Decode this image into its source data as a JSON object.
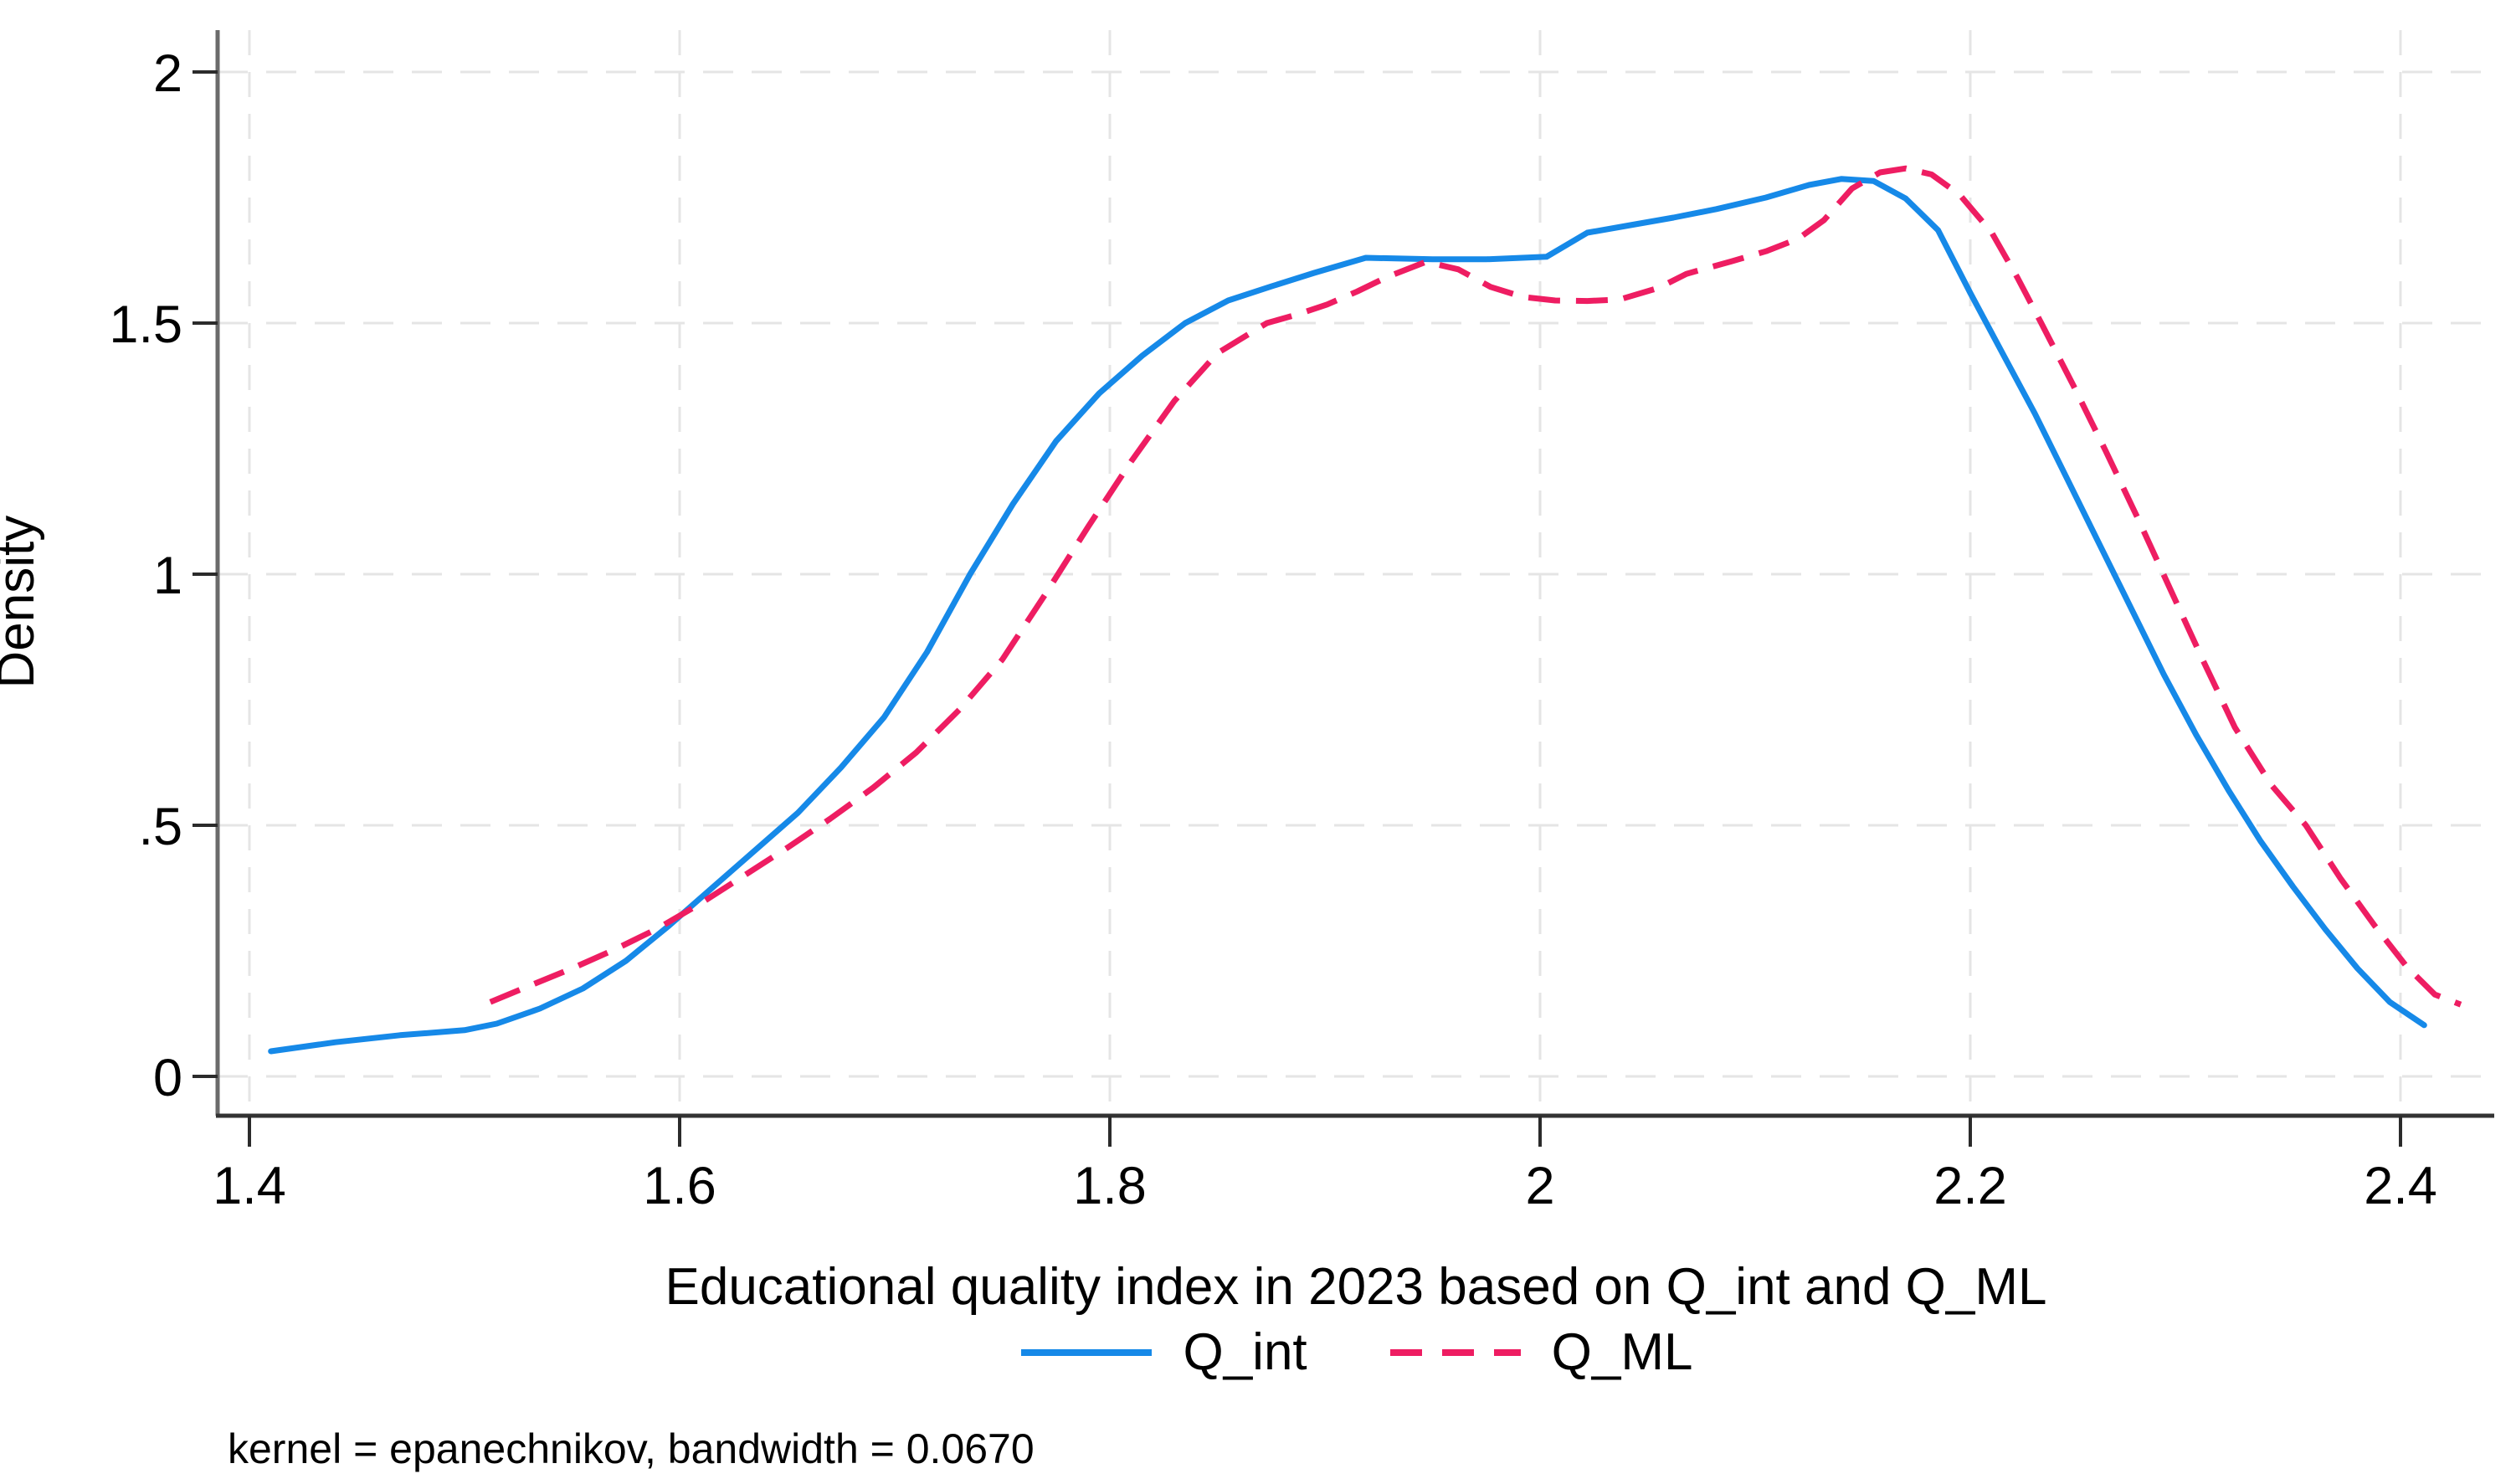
{
  "chart_data": {
    "type": "line",
    "subtype": "kernel-density",
    "title": "",
    "xlabel": "Educational quality index in 2023 based on Q_int and Q_ML",
    "ylabel": "Density",
    "note": "kernel = epanechnikov, bandwidth = 0.0670",
    "xlim": [
      1.385,
      2.444
    ],
    "ylim": [
      -0.078,
      2.083
    ],
    "grid": true,
    "grid_style": "dashed",
    "legend_position": "bottom-center",
    "x_ticks": [
      {
        "value": 1.4,
        "label": "1.4"
      },
      {
        "value": 1.6,
        "label": "1.6"
      },
      {
        "value": 1.8,
        "label": "1.8"
      },
      {
        "value": 2.0,
        "label": "2"
      },
      {
        "value": 2.2,
        "label": "2.2"
      },
      {
        "value": 2.4,
        "label": "2.4"
      }
    ],
    "y_ticks": [
      {
        "value": 0,
        "label": "0"
      },
      {
        "value": 0.5,
        "label": ".5"
      },
      {
        "value": 1,
        "label": "1"
      },
      {
        "value": 1.5,
        "label": "1.5"
      },
      {
        "value": 2,
        "label": "2"
      }
    ],
    "series": [
      {
        "name": "Q_int",
        "style": "solid",
        "color": "#1689e8",
        "points": [
          [
            1.41,
            0.05
          ],
          [
            1.44,
            0.068
          ],
          [
            1.47,
            0.082
          ],
          [
            1.5,
            0.092
          ],
          [
            1.515,
            0.105
          ],
          [
            1.535,
            0.135
          ],
          [
            1.555,
            0.175
          ],
          [
            1.575,
            0.23
          ],
          [
            1.595,
            0.3
          ],
          [
            1.615,
            0.375
          ],
          [
            1.635,
            0.45
          ],
          [
            1.655,
            0.525
          ],
          [
            1.675,
            0.615
          ],
          [
            1.695,
            0.715
          ],
          [
            1.715,
            0.845
          ],
          [
            1.735,
            1.0
          ],
          [
            1.755,
            1.14
          ],
          [
            1.775,
            1.265
          ],
          [
            1.795,
            1.36
          ],
          [
            1.815,
            1.435
          ],
          [
            1.835,
            1.5
          ],
          [
            1.855,
            1.545
          ],
          [
            1.875,
            1.573
          ],
          [
            1.895,
            1.6
          ],
          [
            1.919,
            1.63
          ],
          [
            1.95,
            1.627
          ],
          [
            1.975,
            1.627
          ],
          [
            2.003,
            1.632
          ],
          [
            2.022,
            1.68
          ],
          [
            2.042,
            1.695
          ],
          [
            2.062,
            1.71
          ],
          [
            2.082,
            1.727
          ],
          [
            2.105,
            1.75
          ],
          [
            2.125,
            1.775
          ],
          [
            2.14,
            1.787
          ],
          [
            2.155,
            1.783
          ],
          [
            2.17,
            1.748
          ],
          [
            2.185,
            1.685
          ],
          [
            2.2,
            1.56
          ],
          [
            2.215,
            1.44
          ],
          [
            2.23,
            1.32
          ],
          [
            2.245,
            1.19
          ],
          [
            2.26,
            1.06
          ],
          [
            2.275,
            0.93
          ],
          [
            2.29,
            0.8
          ],
          [
            2.305,
            0.68
          ],
          [
            2.32,
            0.57
          ],
          [
            2.335,
            0.468
          ],
          [
            2.35,
            0.378
          ],
          [
            2.365,
            0.293
          ],
          [
            2.38,
            0.215
          ],
          [
            2.395,
            0.148
          ],
          [
            2.411,
            0.102
          ]
        ]
      },
      {
        "name": "Q_ML",
        "style": "dashed",
        "color": "#ee1d62",
        "points": [
          [
            1.512,
            0.148
          ],
          [
            1.53,
            0.18
          ],
          [
            1.55,
            0.215
          ],
          [
            1.57,
            0.253
          ],
          [
            1.59,
            0.295
          ],
          [
            1.61,
            0.345
          ],
          [
            1.63,
            0.4
          ],
          [
            1.65,
            0.455
          ],
          [
            1.67,
            0.513
          ],
          [
            1.69,
            0.575
          ],
          [
            1.71,
            0.645
          ],
          [
            1.73,
            0.73
          ],
          [
            1.75,
            0.83
          ],
          [
            1.77,
            0.96
          ],
          [
            1.79,
            1.095
          ],
          [
            1.81,
            1.225
          ],
          [
            1.83,
            1.345
          ],
          [
            1.85,
            1.44
          ],
          [
            1.873,
            1.5
          ],
          [
            1.887,
            1.517
          ],
          [
            1.901,
            1.537
          ],
          [
            1.915,
            1.563
          ],
          [
            1.929,
            1.592
          ],
          [
            1.947,
            1.622
          ],
          [
            1.962,
            1.607
          ],
          [
            1.977,
            1.572
          ],
          [
            1.992,
            1.552
          ],
          [
            2.007,
            1.545
          ],
          [
            2.022,
            1.544
          ],
          [
            2.037,
            1.547
          ],
          [
            2.055,
            1.57
          ],
          [
            2.068,
            1.598
          ],
          [
            2.089,
            1.623
          ],
          [
            2.105,
            1.643
          ],
          [
            2.12,
            1.668
          ],
          [
            2.132,
            1.705
          ],
          [
            2.145,
            1.768
          ],
          [
            2.158,
            1.8
          ],
          [
            2.17,
            1.808
          ],
          [
            2.182,
            1.796
          ],
          [
            2.195,
            1.756
          ],
          [
            2.21,
            1.68
          ],
          [
            2.222,
            1.59
          ],
          [
            2.233,
            1.5
          ],
          [
            2.248,
            1.375
          ],
          [
            2.263,
            1.245
          ],
          [
            2.278,
            1.11
          ],
          [
            2.293,
            0.97
          ],
          [
            2.308,
            0.83
          ],
          [
            2.323,
            0.695
          ],
          [
            2.34,
            0.58
          ],
          [
            2.356,
            0.5
          ],
          [
            2.372,
            0.395
          ],
          [
            2.388,
            0.3
          ],
          [
            2.403,
            0.218
          ],
          [
            2.416,
            0.163
          ],
          [
            2.428,
            0.143
          ]
        ]
      }
    ]
  },
  "colors": {
    "background": "#ffffff",
    "gridline": "#e5e5e5",
    "y_axis_line": "#6b6b6b",
    "x_axis_line": "#333333",
    "tick_mark": "#2b2b2b",
    "text": "#000000"
  }
}
